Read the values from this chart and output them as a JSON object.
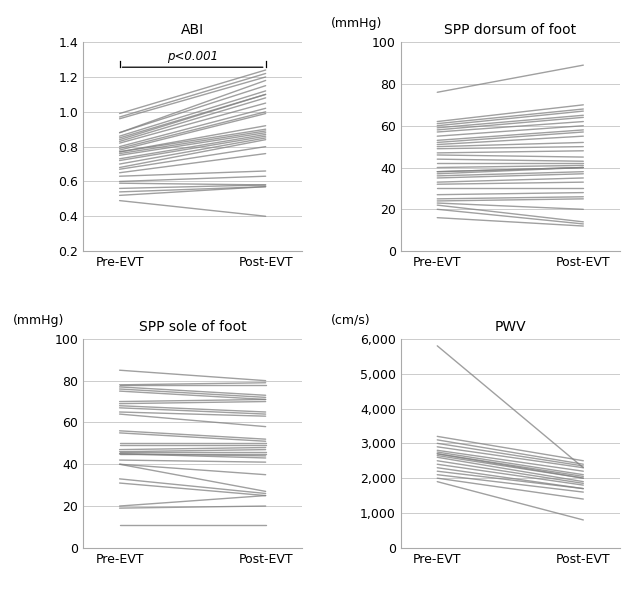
{
  "line_color": "#808080",
  "line_alpha": 0.75,
  "line_width": 1.0,
  "background_color": "#ffffff",
  "abi": {
    "title": "ABI",
    "ylim": [
      0.2,
      1.4
    ],
    "yticks": [
      0.2,
      0.4,
      0.6,
      0.8,
      1.0,
      1.2,
      1.4
    ],
    "annotation": "p<0.001",
    "pre": [
      0.99,
      0.97,
      0.96,
      0.88,
      0.88,
      0.86,
      0.85,
      0.84,
      0.83,
      0.82,
      0.8,
      0.79,
      0.78,
      0.77,
      0.77,
      0.76,
      0.75,
      0.73,
      0.72,
      0.7,
      0.68,
      0.67,
      0.65,
      0.63,
      0.6,
      0.59,
      0.56,
      0.54,
      0.52,
      0.49
    ],
    "post": [
      1.24,
      1.22,
      1.2,
      1.18,
      1.15,
      1.12,
      1.1,
      1.1,
      1.08,
      1.05,
      1.02,
      1.0,
      0.99,
      0.92,
      0.9,
      0.89,
      0.88,
      0.87,
      0.86,
      0.85,
      0.84,
      0.8,
      0.76,
      0.66,
      0.63,
      0.58,
      0.58,
      0.57,
      0.57,
      0.4
    ]
  },
  "spp_dorsum": {
    "title": "SPP dorsum of foot",
    "ylabel_unit": "(mmHg)",
    "ylim": [
      0,
      100
    ],
    "yticks": [
      0,
      20,
      40,
      60,
      80,
      100
    ],
    "pre": [
      76,
      62,
      61,
      60,
      59,
      58,
      57,
      55,
      53,
      52,
      51,
      50,
      49,
      47,
      46,
      44,
      42,
      40,
      38,
      38,
      37,
      36,
      35,
      33,
      32,
      30,
      27,
      25,
      24,
      23,
      22,
      20,
      16
    ],
    "post": [
      89,
      70,
      68,
      67,
      65,
      64,
      62,
      60,
      58,
      57,
      55,
      52,
      50,
      48,
      45,
      43,
      42,
      41,
      40,
      40,
      40,
      38,
      37,
      35,
      33,
      30,
      28,
      26,
      25,
      20,
      14,
      13,
      12
    ]
  },
  "spp_sole": {
    "title": "SPP sole of foot",
    "ylabel_unit": "(mmHg)",
    "ylim": [
      0,
      100
    ],
    "yticks": [
      0,
      20,
      40,
      60,
      80,
      100
    ],
    "pre": [
      85,
      78,
      78,
      77,
      76,
      75,
      70,
      69,
      68,
      67,
      65,
      64,
      56,
      55,
      50,
      49,
      47,
      46,
      46,
      45,
      45,
      45,
      42,
      40,
      40,
      33,
      31,
      20,
      19,
      11
    ],
    "post": [
      80,
      79,
      78,
      73,
      72,
      71,
      71,
      70,
      65,
      64,
      63,
      58,
      52,
      51,
      50,
      49,
      48,
      47,
      46,
      45,
      44,
      43,
      41,
      35,
      27,
      26,
      25,
      25,
      20,
      11
    ]
  },
  "pwv": {
    "title": "PWV",
    "ylabel_unit": "(cm/s)",
    "ylim": [
      0,
      6000
    ],
    "yticks": [
      0,
      1000,
      2000,
      3000,
      4000,
      5000,
      6000
    ],
    "ytick_labels": [
      "0",
      "1,000",
      "2,000",
      "3,000",
      "4,000",
      "5,000",
      "6,000"
    ],
    "pre": [
      5800,
      3200,
      3100,
      3000,
      2900,
      2800,
      2750,
      2700,
      2700,
      2650,
      2600,
      2500,
      2400,
      2300,
      2200,
      2100,
      2000,
      1900
    ],
    "post": [
      2300,
      2500,
      2400,
      2350,
      2300,
      2200,
      2100,
      2050,
      2000,
      2000,
      1900,
      1850,
      1800,
      1700,
      1700,
      1600,
      1400,
      800
    ]
  }
}
